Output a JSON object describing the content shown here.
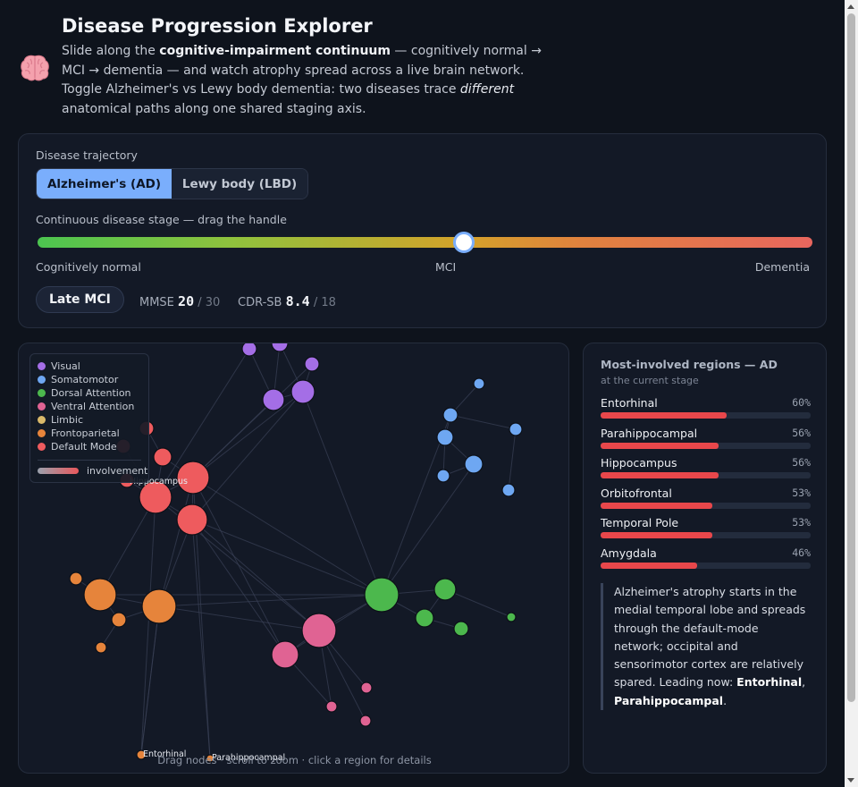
{
  "header": {
    "icon": "brain-icon",
    "title": "Disease Progression Explorer",
    "intro": {
      "p1": "Slide along the ",
      "b1": "cognitive-impairment continuum",
      "p2": " — cognitively normal → MCI → dementia — and watch atrophy spread across a live brain network. Toggle Alzheimer's vs Lewy body dementia: two diseases trace ",
      "i1": "different",
      "p3": " anatomical paths along one shared staging axis."
    }
  },
  "controls": {
    "trajectory_label": "Disease trajectory",
    "options": [
      "Alzheimer's (AD)",
      "Lewy body (LBD)"
    ],
    "selected": "Alzheimer's (AD)",
    "stage_label": "Continuous disease stage — drag the handle",
    "stage_value": 0.55,
    "ticks": [
      "Cognitively normal",
      "MCI",
      "Dementia"
    ],
    "stage_name": "Late MCI",
    "mmse_label": "MMSE",
    "mmse_value": "20",
    "mmse_max": "/ 30",
    "cdr_label": "CDR-SB",
    "cdr_value": "8.4",
    "cdr_max": "/ 18"
  },
  "colors": {
    "Visual": "#a46ee6",
    "Somatomotor": "#6ea7f2",
    "Dorsal Attention": "#4cb84d",
    "Ventral Attention": "#e06393",
    "Limbic": "#d9b96a",
    "Frontoparietal": "#e6843b",
    "Default Mode": "#ee5b5e"
  },
  "legend": {
    "networks": [
      "Visual",
      "Somatomotor",
      "Dorsal Attention",
      "Ventral Attention",
      "Limbic",
      "Frontoparietal",
      "Default Mode"
    ],
    "involvement_label": "involvement"
  },
  "network_labels": {
    "hippocampus": "Hippocampus",
    "entorhinal": "Entorhinal",
    "parahippocampal": "Parahippocampal"
  },
  "hint": "Drag nodes · scroll to zoom · click a region for details",
  "side": {
    "title": "Most-involved regions — AD",
    "subtitle": "at the current stage",
    "regions": [
      {
        "name": "Entorhinal",
        "pct": "60%",
        "value": 0.6
      },
      {
        "name": "Parahippocampal",
        "pct": "56%",
        "value": 0.56
      },
      {
        "name": "Hippocampus",
        "pct": "56%",
        "value": 0.56
      },
      {
        "name": "Orbitofrontal",
        "pct": "53%",
        "value": 0.53
      },
      {
        "name": "Temporal Pole",
        "pct": "53%",
        "value": 0.53
      },
      {
        "name": "Amygdala",
        "pct": "46%",
        "value": 0.46
      }
    ],
    "note": {
      "text": "Alzheimer's atrophy starts in the medial temporal lobe and spreads through the default-mode network; occipital and sensorimotor cortex are relatively spared. Leading now: ",
      "lead1": "Entorhinal",
      "sep": ", ",
      "lead2": "Parahippocampal",
      "end": "."
    }
  }
}
